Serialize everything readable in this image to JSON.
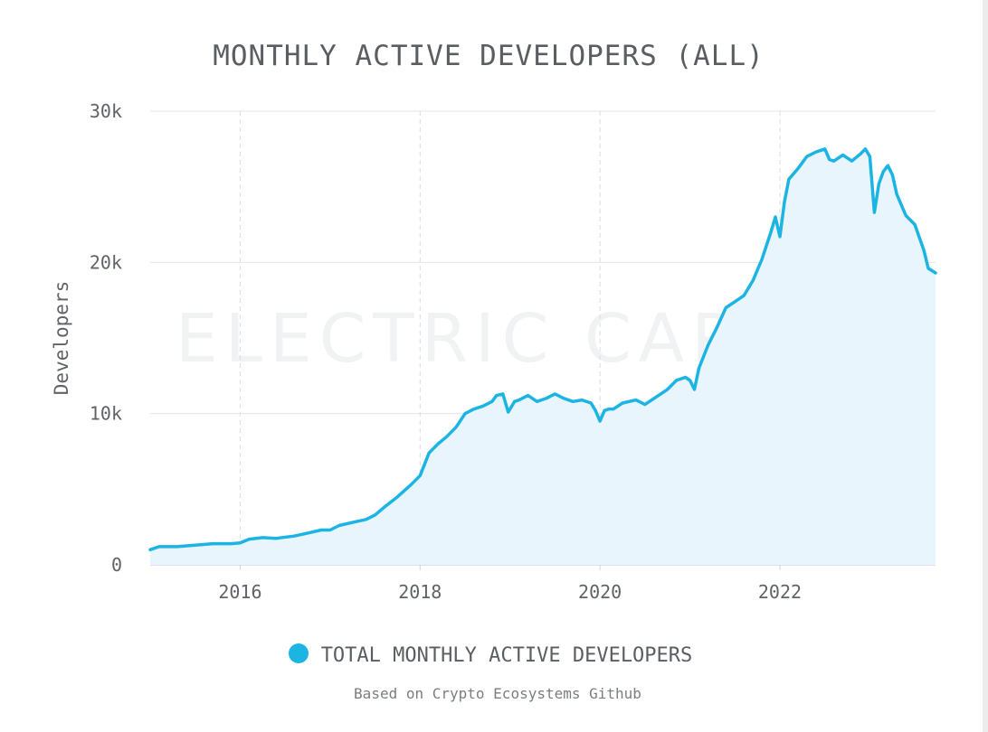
{
  "chart_data": {
    "type": "area",
    "title": "MONTHLY ACTIVE DEVELOPERS (ALL)",
    "xlabel": "",
    "ylabel": "Developers",
    "xlim": [
      2015.0,
      2023.73
    ],
    "ylim": [
      0,
      30000
    ],
    "x_ticks": [
      2016,
      2018,
      2020,
      2022
    ],
    "x_tick_labels": [
      "2016",
      "2018",
      "2020",
      "2022"
    ],
    "y_ticks": [
      0,
      10000,
      20000,
      30000
    ],
    "y_tick_labels": [
      "0",
      "10k",
      "20k",
      "30k"
    ],
    "grid": "horizontal solid, vertical dashed at ticks",
    "legend_position": "bottom-center",
    "series": [
      {
        "name": "TOTAL MONTHLY ACTIVE DEVELOPERS",
        "color": "#1cb4e3",
        "fill": "#e9f5fc",
        "x": [
          2015.0,
          2015.1,
          2015.3,
          2015.5,
          2015.7,
          2015.9,
          2016.0,
          2016.1,
          2016.25,
          2016.4,
          2016.6,
          2016.75,
          2016.9,
          2017.0,
          2017.1,
          2017.25,
          2017.4,
          2017.5,
          2017.6,
          2017.75,
          2017.9,
          2018.0,
          2018.1,
          2018.2,
          2018.3,
          2018.4,
          2018.5,
          2018.6,
          2018.7,
          2018.8,
          2018.85,
          2018.92,
          2018.98,
          2019.05,
          2019.1,
          2019.2,
          2019.3,
          2019.4,
          2019.5,
          2019.6,
          2019.7,
          2019.8,
          2019.9,
          2019.95,
          2020.0,
          2020.05,
          2020.1,
          2020.15,
          2020.25,
          2020.4,
          2020.5,
          2020.6,
          2020.75,
          2020.85,
          2020.95,
          2021.0,
          2021.05,
          2021.1,
          2021.2,
          2021.3,
          2021.4,
          2021.5,
          2021.6,
          2021.7,
          2021.8,
          2021.9,
          2021.95,
          2022.0,
          2022.05,
          2022.1,
          2022.2,
          2022.3,
          2022.4,
          2022.5,
          2022.55,
          2022.6,
          2022.7,
          2022.8,
          2022.9,
          2022.95,
          2023.0,
          2023.05,
          2023.1,
          2023.15,
          2023.2,
          2023.25,
          2023.3,
          2023.4,
          2023.5,
          2023.6,
          2023.65,
          2023.73
        ],
        "values": [
          1000,
          1200,
          1200,
          1300,
          1400,
          1400,
          1450,
          1700,
          1800,
          1750,
          1900,
          2100,
          2300,
          2300,
          2600,
          2800,
          3000,
          3300,
          3800,
          4500,
          5300,
          5900,
          7400,
          8000,
          8500,
          9100,
          10000,
          10300,
          10500,
          10800,
          11200,
          11300,
          10100,
          10800,
          10900,
          11200,
          10800,
          11000,
          11300,
          11000,
          10800,
          10900,
          10700,
          10200,
          9500,
          10200,
          10300,
          10300,
          10700,
          10900,
          10600,
          11000,
          11600,
          12200,
          12400,
          12200,
          11600,
          13000,
          14500,
          15700,
          17000,
          17400,
          17800,
          18800,
          20200,
          22000,
          23000,
          21700,
          24000,
          25500,
          26200,
          27000,
          27300,
          27500,
          26800,
          26700,
          27100,
          26700,
          27200,
          27500,
          27000,
          23300,
          25200,
          26000,
          26400,
          25800,
          24500,
          23100,
          22500,
          20800,
          19600,
          19300
        ]
      }
    ],
    "watermark": "ELECTRIC CAPITAL",
    "source_note": "Based on Crypto Ecosystems Github"
  }
}
